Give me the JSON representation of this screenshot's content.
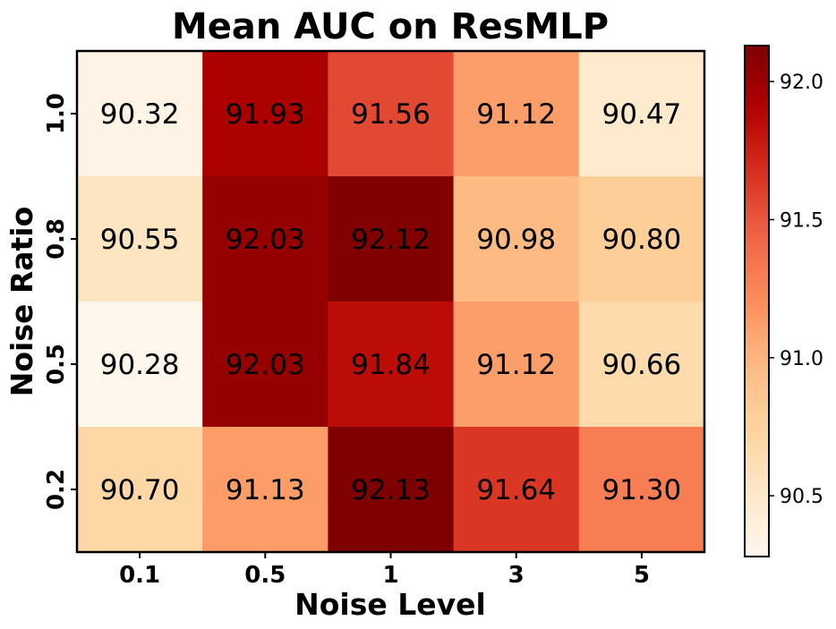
{
  "chart_data": {
    "type": "heatmap",
    "title": "Mean AUC on ResMLP",
    "xlabel": "Noise Level",
    "ylabel": "Noise Ratio",
    "x_categories": [
      "0.1",
      "0.5",
      "1",
      "3",
      "5"
    ],
    "y_categories": [
      "1.0",
      "0.8",
      "0.5",
      "0.2"
    ],
    "values": [
      [
        90.32,
        91.93,
        91.56,
        91.12,
        90.47
      ],
      [
        90.55,
        92.03,
        92.12,
        90.98,
        90.8
      ],
      [
        90.28,
        92.03,
        91.84,
        91.12,
        90.66
      ],
      [
        90.7,
        91.13,
        92.13,
        91.64,
        91.3
      ]
    ],
    "cell_labels": [
      [
        "90.32",
        "91.93",
        "91.56",
        "91.12",
        "90.47"
      ],
      [
        "90.55",
        "92.03",
        "92.12",
        "90.98",
        "90.80"
      ],
      [
        "90.28",
        "92.03",
        "91.84",
        "91.12",
        "90.66"
      ],
      [
        "90.70",
        "91.13",
        "92.13",
        "91.64",
        "91.30"
      ]
    ],
    "colormap": "OrRd",
    "colorbar": {
      "range": [
        90.28,
        92.13
      ],
      "ticks": [
        90.5,
        91.0,
        91.5,
        92.0
      ],
      "tick_labels": [
        "90.5",
        "91.0",
        "91.5",
        "92.0"
      ]
    }
  }
}
